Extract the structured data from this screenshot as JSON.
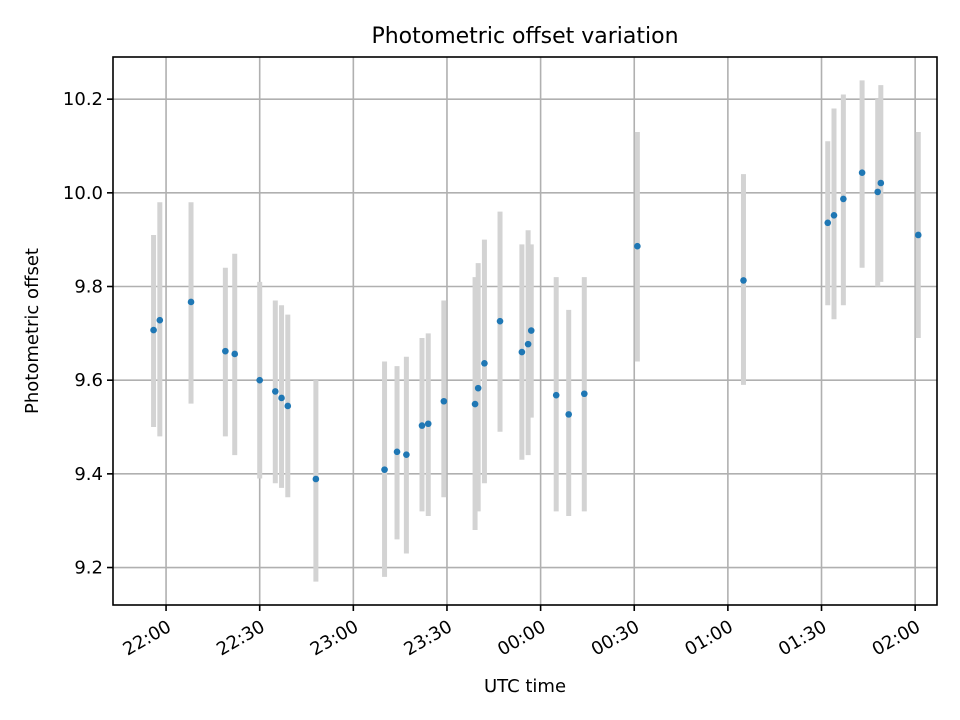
{
  "chart_data": {
    "type": "scatter",
    "title": "Photometric offset variation",
    "xlabel": "UTC time",
    "ylabel": "Photometric offset",
    "xlim": [
      "21:43",
      "02:07"
    ],
    "ylim": [
      9.12,
      10.29
    ],
    "xticks": [
      "22:00",
      "22:30",
      "23:00",
      "23:30",
      "00:00",
      "00:30",
      "01:00",
      "01:30",
      "02:00"
    ],
    "yticks": [
      9.2,
      9.4,
      9.6,
      9.8,
      10.0,
      10.2
    ],
    "grid": true,
    "colors": {
      "point": "#1f77b4",
      "errorbar": "#d3d3d3",
      "grid": "#b0b0b0"
    },
    "series": [
      {
        "points": [
          {
            "x": "21:56",
            "y": 9.707,
            "ylow": 9.5,
            "yhigh": 9.91
          },
          {
            "x": "21:58",
            "y": 9.728,
            "ylow": 9.48,
            "yhigh": 9.98
          },
          {
            "x": "22:08",
            "y": 9.767,
            "ylow": 9.55,
            "yhigh": 9.98
          },
          {
            "x": "22:19",
            "y": 9.662,
            "ylow": 9.48,
            "yhigh": 9.84
          },
          {
            "x": "22:22",
            "y": 9.656,
            "ylow": 9.44,
            "yhigh": 9.87
          },
          {
            "x": "22:30",
            "y": 9.6,
            "ylow": 9.39,
            "yhigh": 9.81
          },
          {
            "x": "22:35",
            "y": 9.576,
            "ylow": 9.38,
            "yhigh": 9.77
          },
          {
            "x": "22:37",
            "y": 9.562,
            "ylow": 9.37,
            "yhigh": 9.76
          },
          {
            "x": "22:39",
            "y": 9.545,
            "ylow": 9.35,
            "yhigh": 9.74
          },
          {
            "x": "22:48",
            "y": 9.389,
            "ylow": 9.17,
            "yhigh": 9.6
          },
          {
            "x": "23:10",
            "y": 9.409,
            "ylow": 9.18,
            "yhigh": 9.64
          },
          {
            "x": "23:14",
            "y": 9.447,
            "ylow": 9.26,
            "yhigh": 9.63
          },
          {
            "x": "23:17",
            "y": 9.441,
            "ylow": 9.23,
            "yhigh": 9.65
          },
          {
            "x": "23:22",
            "y": 9.503,
            "ylow": 9.32,
            "yhigh": 9.69
          },
          {
            "x": "23:24",
            "y": 9.507,
            "ylow": 9.31,
            "yhigh": 9.7
          },
          {
            "x": "23:29",
            "y": 9.555,
            "ylow": 9.35,
            "yhigh": 9.77
          },
          {
            "x": "23:39",
            "y": 9.549,
            "ylow": 9.28,
            "yhigh": 9.82
          },
          {
            "x": "23:40",
            "y": 9.583,
            "ylow": 9.32,
            "yhigh": 9.85
          },
          {
            "x": "23:42",
            "y": 9.636,
            "ylow": 9.38,
            "yhigh": 9.9
          },
          {
            "x": "23:47",
            "y": 9.726,
            "ylow": 9.49,
            "yhigh": 9.96
          },
          {
            "x": "23:54",
            "y": 9.66,
            "ylow": 9.43,
            "yhigh": 9.89
          },
          {
            "x": "23:56",
            "y": 9.677,
            "ylow": 9.44,
            "yhigh": 9.92
          },
          {
            "x": "23:57",
            "y": 9.706,
            "ylow": 9.52,
            "yhigh": 9.89
          },
          {
            "x": "00:05",
            "y": 9.568,
            "ylow": 9.32,
            "yhigh": 9.82
          },
          {
            "x": "00:09",
            "y": 9.527,
            "ylow": 9.31,
            "yhigh": 9.75
          },
          {
            "x": "00:14",
            "y": 9.571,
            "ylow": 9.32,
            "yhigh": 9.82
          },
          {
            "x": "00:31",
            "y": 9.886,
            "ylow": 9.64,
            "yhigh": 10.13
          },
          {
            "x": "01:05",
            "y": 9.813,
            "ylow": 9.59,
            "yhigh": 10.04
          },
          {
            "x": "01:32",
            "y": 9.936,
            "ylow": 9.76,
            "yhigh": 10.11
          },
          {
            "x": "01:34",
            "y": 9.952,
            "ylow": 9.73,
            "yhigh": 10.18
          },
          {
            "x": "01:37",
            "y": 9.987,
            "ylow": 9.76,
            "yhigh": 10.21
          },
          {
            "x": "01:43",
            "y": 10.043,
            "ylow": 9.84,
            "yhigh": 10.24
          },
          {
            "x": "01:48",
            "y": 10.002,
            "ylow": 9.8,
            "yhigh": 10.2
          },
          {
            "x": "01:49",
            "y": 10.021,
            "ylow": 9.81,
            "yhigh": 10.23
          },
          {
            "x": "02:01",
            "y": 9.91,
            "ylow": 9.69,
            "yhigh": 10.13
          }
        ]
      }
    ]
  }
}
